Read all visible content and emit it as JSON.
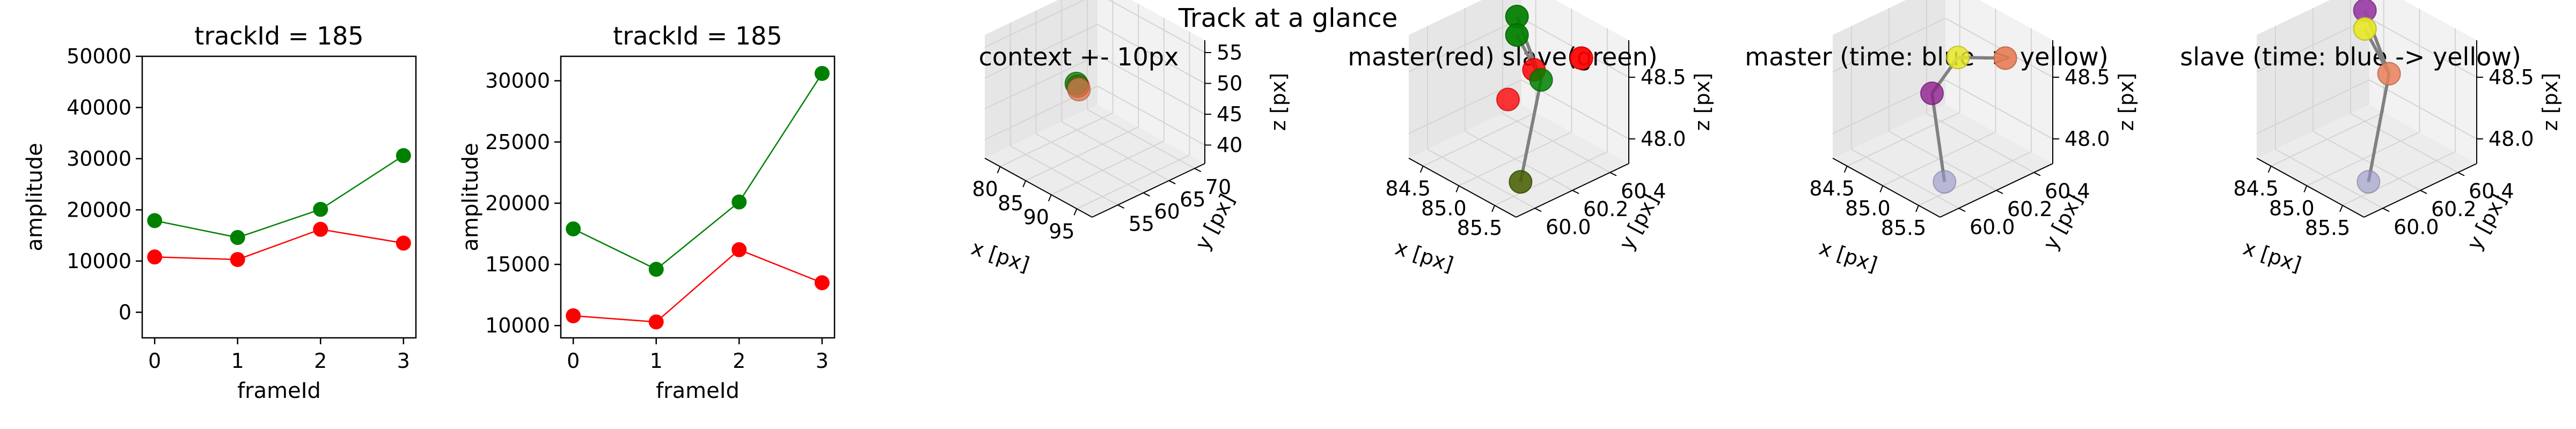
{
  "figure": {
    "suptitle": "Track at a glance"
  },
  "chart_data": [
    {
      "type": "line",
      "title": "trackId = 185",
      "xlabel": "frameId",
      "ylabel": "amplitude",
      "x": [
        0,
        1,
        2,
        3
      ],
      "xlim": [
        -0.15,
        3.15
      ],
      "ylim": [
        -5000,
        50000
      ],
      "xticks": [
        0,
        1,
        2,
        3
      ],
      "yticks": [
        0,
        10000,
        20000,
        30000,
        40000,
        50000
      ],
      "series": [
        {
          "color": "#ff0000",
          "values": [
            10800,
            10300,
            16200,
            13500
          ]
        },
        {
          "color": "#008000",
          "values": [
            17900,
            14600,
            20100,
            30600
          ]
        }
      ]
    },
    {
      "type": "line",
      "title": "trackId = 185",
      "xlabel": "frameId",
      "ylabel": "amplitude",
      "x": [
        0,
        1,
        2,
        3
      ],
      "xlim": [
        -0.15,
        3.15
      ],
      "ylim": [
        9000,
        32000
      ],
      "xticks": [
        0,
        1,
        2,
        3
      ],
      "yticks": [
        10000,
        15000,
        20000,
        25000,
        30000
      ],
      "series": [
        {
          "color": "#ff0000",
          "values": [
            10800,
            10300,
            16200,
            13500
          ]
        },
        {
          "color": "#008000",
          "values": [
            17900,
            14600,
            20100,
            30600
          ]
        }
      ]
    },
    {
      "type": "scatter",
      "title": "context +- 10px",
      "xlabel": "x [px]",
      "ylabel": "y [px]",
      "zlabel": "z [px]",
      "xticks": [
        "80",
        "85",
        "90",
        "95"
      ],
      "yticks": [
        "55",
        "60",
        "65",
        "70"
      ],
      "zticks": [
        "40",
        "45",
        "50",
        "55"
      ],
      "points": [
        {
          "color": "#ff0000",
          "x": 85.0,
          "y": 60.2,
          "z": 48.3
        },
        {
          "color": "#008000",
          "x": 84.6,
          "y": 60.3,
          "z": 48.5
        },
        {
          "color": "#d27b50",
          "x": 85.4,
          "y": 60.0,
          "z": 48.0
        }
      ]
    },
    {
      "type": "scatter",
      "title": "master(red) slave(green)",
      "xlabel": "x [px]",
      "ylabel": "y [px]",
      "zlabel": "z [px]",
      "xticks": [
        "84.5",
        "85.0",
        "85.5"
      ],
      "yticks": [
        "60.0",
        "60.2",
        "60.4"
      ],
      "zticks": [
        "48.0",
        "48.5"
      ],
      "points": [
        {
          "color": "#ff0000",
          "x": 85.4,
          "y": 60.4,
          "z": 48.6
        },
        {
          "color": "#ff0000",
          "x": 85.0,
          "y": 60.3,
          "z": 48.45
        },
        {
          "color": "#ff0000",
          "x": 84.9,
          "y": 60.2,
          "z": 48.25
        },
        {
          "color": "#ff0000",
          "x": 85.6,
          "y": 60.0,
          "z": 47.95
        },
        {
          "color": "#008000",
          "x": 84.5,
          "y": 60.4,
          "z": 48.65
        },
        {
          "color": "#008000",
          "x": 84.5,
          "y": 60.4,
          "z": 48.5
        },
        {
          "color": "#008000",
          "x": 85.1,
          "y": 60.3,
          "z": 48.4
        },
        {
          "color": "#008000",
          "x": 85.6,
          "y": 60.0,
          "z": 47.95
        }
      ],
      "lines": [
        [
          4,
          6
        ],
        [
          5,
          6
        ],
        [
          6,
          7
        ]
      ]
    },
    {
      "type": "scatter",
      "title": "master (time: blue -> yellow)",
      "xlabel": "x [px]",
      "ylabel": "y [px]",
      "zlabel": "z [px]",
      "xticks": [
        "84.5",
        "85.0",
        "85.5"
      ],
      "yticks": [
        "60.0",
        "60.2",
        "60.4"
      ],
      "zticks": [
        "48.0",
        "48.5"
      ],
      "points": [
        {
          "color": "#e8e82a",
          "x": 85.0,
          "y": 60.3,
          "z": 48.55
        },
        {
          "color": "#e8805a",
          "x": 85.4,
          "y": 60.4,
          "z": 48.6
        },
        {
          "color": "#8b1a8b",
          "x": 84.9,
          "y": 60.2,
          "z": 48.3
        },
        {
          "color": "#9898c8",
          "x": 85.6,
          "y": 60.0,
          "z": 47.95
        }
      ],
      "lines": [
        [
          0,
          1
        ],
        [
          0,
          2
        ],
        [
          2,
          3
        ]
      ]
    },
    {
      "type": "scatter",
      "title": "slave (time: blue -> yellow)",
      "xlabel": "x [px]",
      "ylabel": "y [px]",
      "zlabel": "z [px]",
      "xticks": [
        "84.5",
        "85.0",
        "85.5"
      ],
      "yticks": [
        "60.0",
        "60.2",
        "60.4"
      ],
      "zticks": [
        "48.0",
        "48.5"
      ],
      "points": [
        {
          "color": "#9a3fa6",
          "x": 84.5,
          "y": 60.4,
          "z": 48.7
        },
        {
          "color": "#e8e82a",
          "x": 84.5,
          "y": 60.4,
          "z": 48.55
        },
        {
          "color": "#e8805a",
          "x": 85.1,
          "y": 60.3,
          "z": 48.45
        },
        {
          "color": "#9898c8",
          "x": 85.6,
          "y": 60.0,
          "z": 47.95
        }
      ],
      "lines": [
        [
          1,
          2
        ],
        [
          0,
          2
        ],
        [
          2,
          3
        ]
      ]
    }
  ]
}
